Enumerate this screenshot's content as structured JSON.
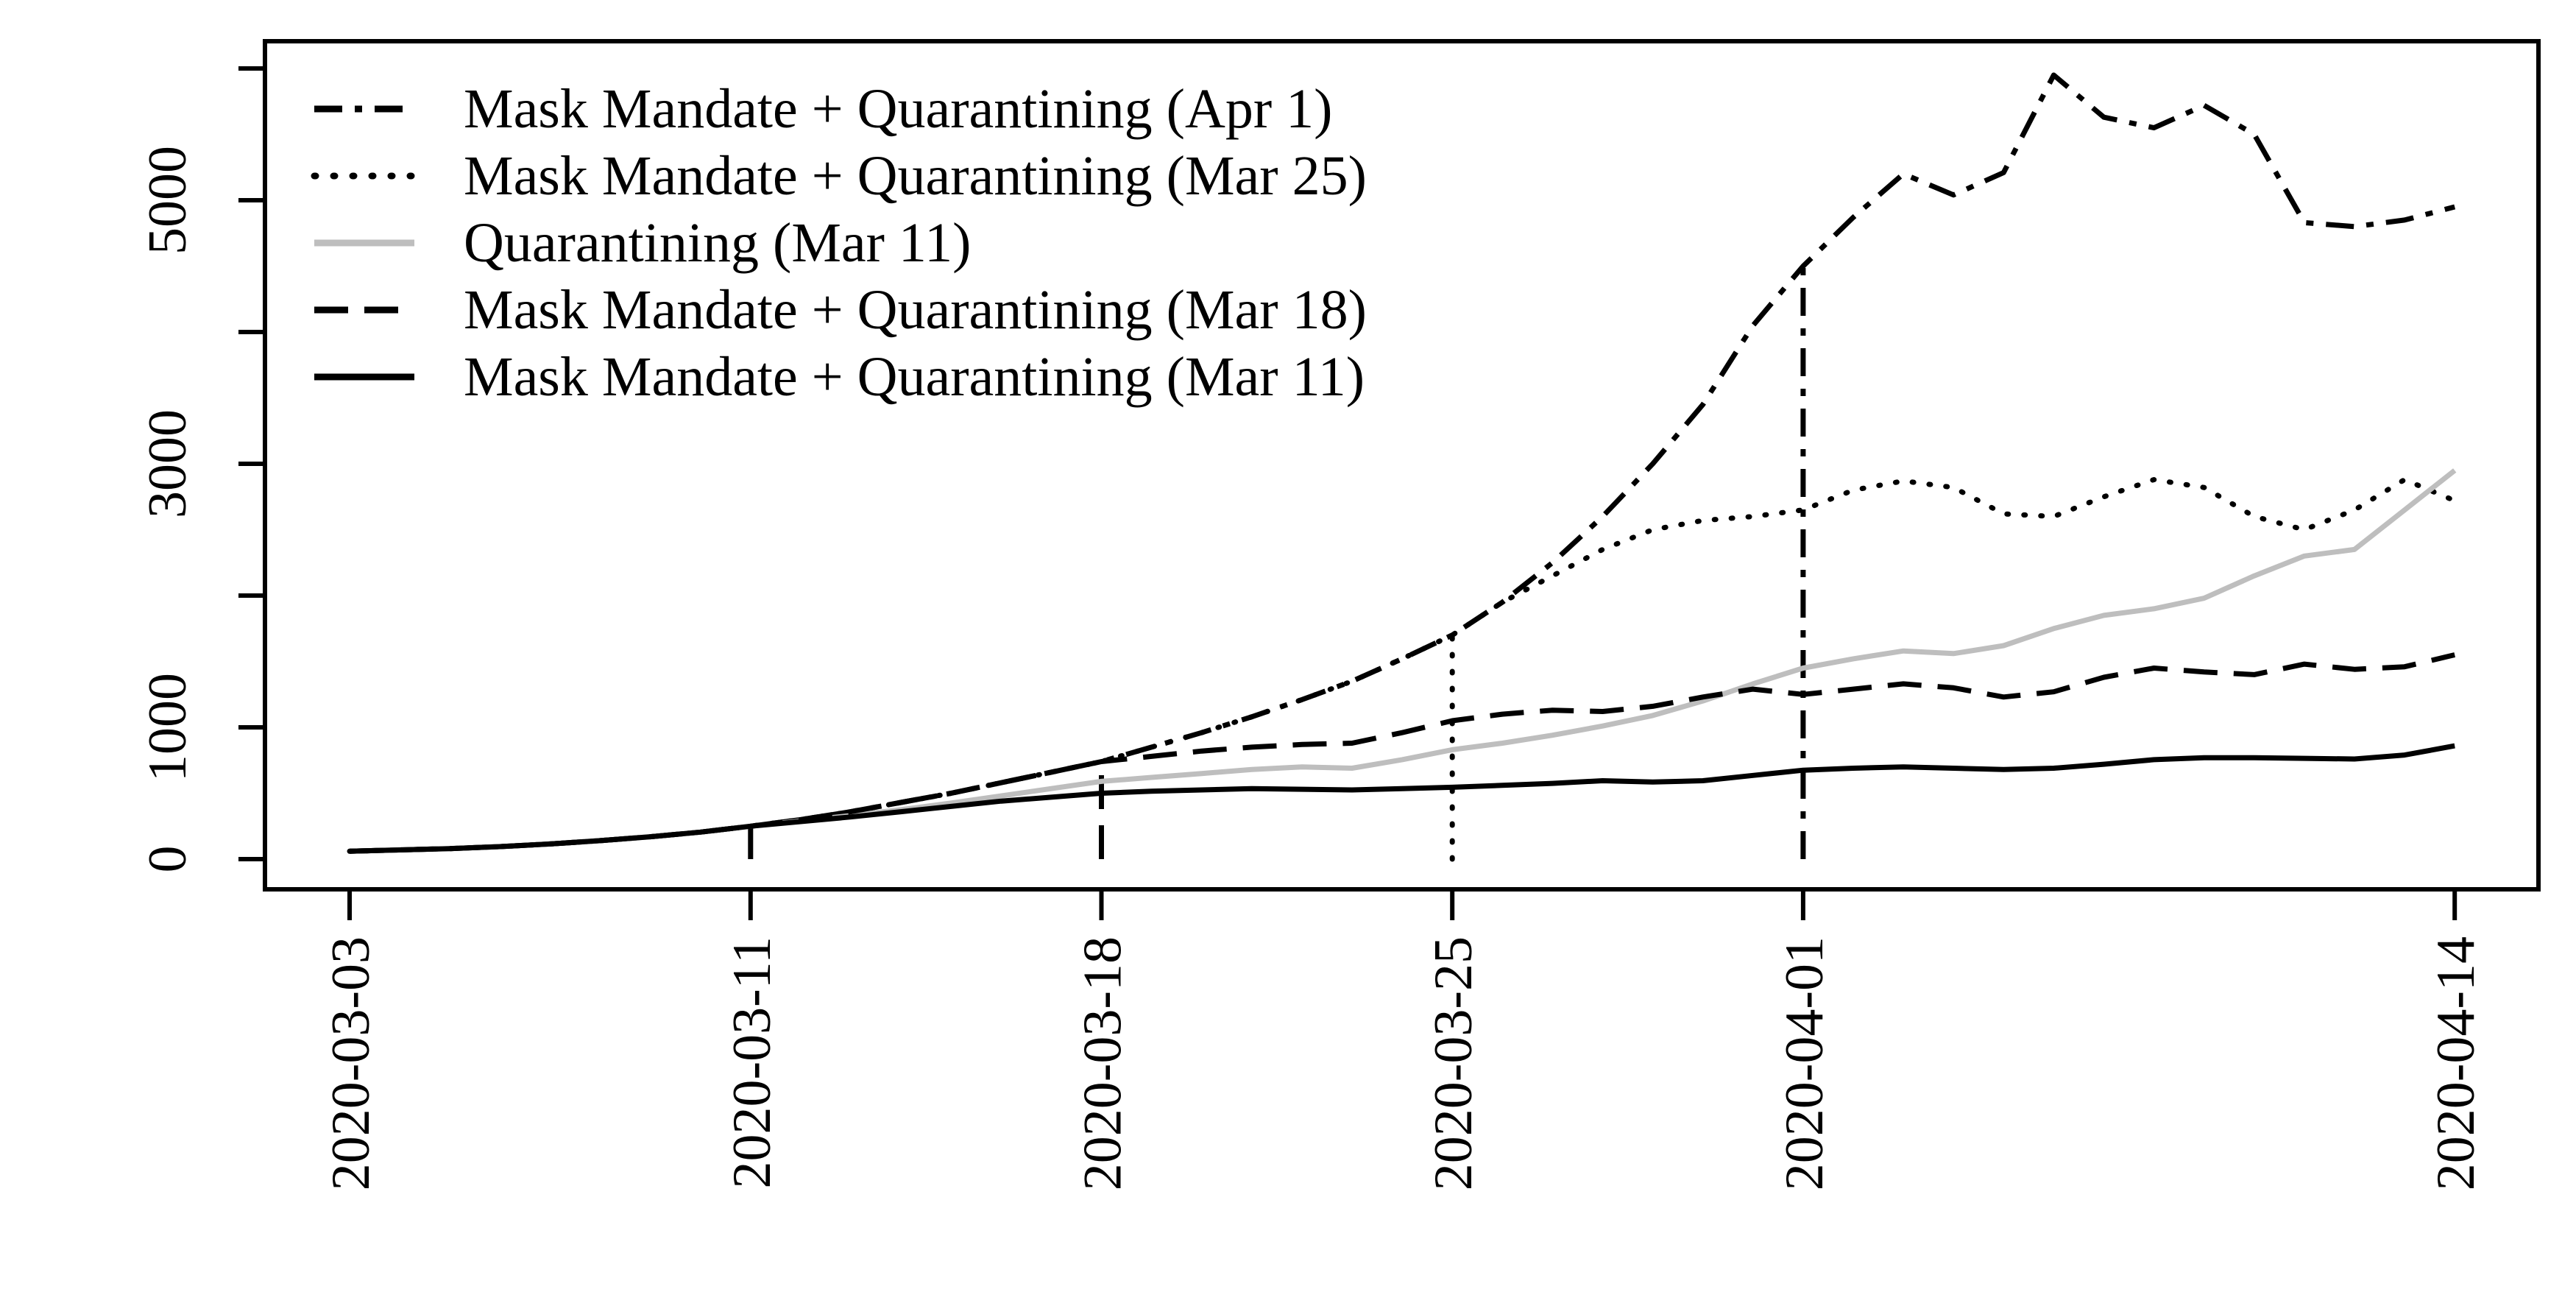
{
  "figure": {
    "background_color": "#ffffff",
    "accent_black": "#000000",
    "accent_gray": "#BEBEBE"
  },
  "chart_data": {
    "type": "line",
    "title": "",
    "xlabel": "",
    "ylabel": "",
    "grid": false,
    "legend_position": "top-left",
    "ylim": [
      0,
      6200
    ],
    "y_ticks": [
      0,
      1000,
      2000,
      3000,
      4000,
      5000,
      6000
    ],
    "y_tick_labels": [
      "0",
      "1000",
      "",
      "3000",
      "",
      "5000",
      ""
    ],
    "x_tick_days": [
      0,
      8,
      15,
      22,
      29,
      42
    ],
    "x_tick_labels": [
      "2020-03-03",
      "2020-03-11",
      "2020-03-18",
      "2020-03-25",
      "2020-04-01",
      "2020-04-14"
    ],
    "x": [
      "2020-03-03",
      "2020-03-04",
      "2020-03-05",
      "2020-03-06",
      "2020-03-07",
      "2020-03-08",
      "2020-03-09",
      "2020-03-10",
      "2020-03-11",
      "2020-03-12",
      "2020-03-13",
      "2020-03-14",
      "2020-03-15",
      "2020-03-16",
      "2020-03-17",
      "2020-03-18",
      "2020-03-19",
      "2020-03-20",
      "2020-03-21",
      "2020-03-22",
      "2020-03-23",
      "2020-03-24",
      "2020-03-25",
      "2020-03-26",
      "2020-03-27",
      "2020-03-28",
      "2020-03-29",
      "2020-03-30",
      "2020-03-31",
      "2020-04-01",
      "2020-04-02",
      "2020-04-03",
      "2020-04-04",
      "2020-04-05",
      "2020-04-06",
      "2020-04-07",
      "2020-04-08",
      "2020-04-09",
      "2020-04-10",
      "2020-04-11",
      "2020-04-12",
      "2020-04-13",
      "2020-04-14"
    ],
    "series": [
      {
        "name": "Mask Mandate + Quarantining (Apr 1)",
        "style": "dashdot",
        "color": "#000000",
        "values": [
          60,
          70,
          80,
          95,
          115,
          140,
          170,
          205,
          250,
          300,
          360,
          430,
          500,
          580,
          660,
          740,
          850,
          960,
          1080,
          1210,
          1350,
          1520,
          1700,
          1950,
          2250,
          2600,
          3000,
          3450,
          4050,
          4500,
          4870,
          5200,
          5040,
          5210,
          5950,
          5630,
          5550,
          5720,
          5500,
          4830,
          4800,
          4850,
          4950
        ]
      },
      {
        "name": "Mask Mandate + Quarantining (Mar 25)",
        "style": "dotted",
        "color": "#000000",
        "values": [
          60,
          70,
          80,
          95,
          115,
          140,
          170,
          205,
          250,
          300,
          360,
          430,
          500,
          580,
          660,
          740,
          850,
          960,
          1080,
          1210,
          1350,
          1520,
          1700,
          1950,
          2150,
          2350,
          2500,
          2570,
          2600,
          2650,
          2800,
          2870,
          2820,
          2620,
          2600,
          2750,
          2880,
          2820,
          2600,
          2500,
          2650,
          2880,
          2720
        ]
      },
      {
        "name": "Quarantining (Mar 11)",
        "style": "solid",
        "color": "#BEBEBE",
        "values": [
          60,
          70,
          80,
          95,
          115,
          140,
          170,
          205,
          250,
          290,
          330,
          375,
          425,
          480,
          535,
          590,
          620,
          650,
          680,
          700,
          690,
          755,
          830,
          880,
          940,
          1010,
          1090,
          1200,
          1330,
          1450,
          1520,
          1580,
          1560,
          1620,
          1750,
          1850,
          1900,
          1980,
          2150,
          2300,
          2350,
          2650,
          2950
        ]
      },
      {
        "name": "Mask Mandate + Quarantining (Mar 18)",
        "style": "dashed",
        "color": "#000000",
        "values": [
          60,
          70,
          80,
          95,
          115,
          140,
          170,
          205,
          250,
          300,
          360,
          430,
          500,
          580,
          660,
          740,
          780,
          820,
          850,
          870,
          880,
          960,
          1050,
          1100,
          1130,
          1120,
          1160,
          1230,
          1290,
          1250,
          1290,
          1330,
          1300,
          1230,
          1270,
          1380,
          1450,
          1420,
          1400,
          1480,
          1440,
          1460,
          1550
        ]
      },
      {
        "name": "Mask Mandate + Quarantining (Mar 11)",
        "style": "solid",
        "color": "#000000",
        "values": [
          60,
          70,
          80,
          95,
          115,
          140,
          170,
          205,
          250,
          285,
          320,
          360,
          400,
          440,
          470,
          500,
          515,
          525,
          535,
          530,
          525,
          535,
          545,
          560,
          575,
          595,
          585,
          595,
          635,
          675,
          690,
          700,
          690,
          680,
          690,
          720,
          755,
          770,
          770,
          765,
          760,
          790,
          860
        ]
      }
    ],
    "intervention_markers": [
      {
        "date": "2020-03-11",
        "day": 8,
        "style": "solid",
        "color": "#000000",
        "from": 0,
        "to": 250
      },
      {
        "date": "2020-03-18",
        "day": 15,
        "style": "dashed",
        "color": "#000000",
        "from": 0,
        "to": 740
      },
      {
        "date": "2020-03-25",
        "day": 22,
        "style": "dotted",
        "color": "#000000",
        "from": 0,
        "to": 1700
      },
      {
        "date": "2020-04-01",
        "day": 29,
        "style": "dashdot",
        "color": "#000000",
        "from": 0,
        "to": 4500
      }
    ],
    "legend": {
      "entries": [
        "Mask Mandate + Quarantining (Apr 1)",
        "Mask Mandate + Quarantining (Mar 25)",
        "Quarantining (Mar 11)",
        "Mask Mandate + Quarantining (Mar 18)",
        "Mask Mandate + Quarantining (Mar 11)"
      ]
    }
  }
}
